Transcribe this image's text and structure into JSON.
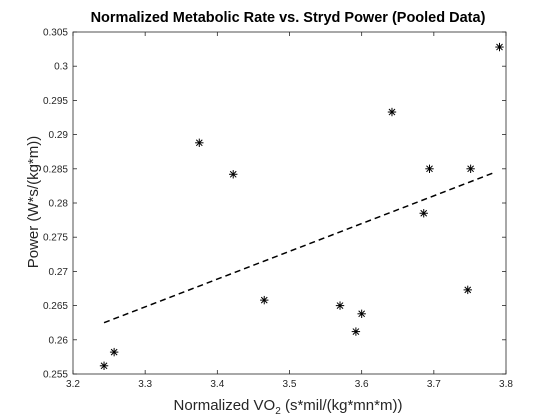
{
  "chart_data": {
    "type": "scatter",
    "title": "Normalized Metabolic Rate vs. Stryd Power (Pooled Data)",
    "xlabel": "Normalized VO",
    "xlabel_sub": "2",
    "xlabel_suffix": " (s*mil/(kg*mn*m))",
    "ylabel": "Power (W*s/(kg*m))",
    "xlim": [
      3.2,
      3.8
    ],
    "ylim": [
      0.255,
      0.305
    ],
    "xticks": [
      "3.2",
      "3.3",
      "3.4",
      "3.5",
      "3.6",
      "3.7",
      "3.8"
    ],
    "yticks": [
      "0.255",
      "0.26",
      "0.265",
      "0.27",
      "0.275",
      "0.28",
      "0.285",
      "0.29",
      "0.295",
      "0.3",
      "0.305"
    ],
    "grid": false,
    "marker": "asterisk",
    "series": [
      {
        "points": [
          [
            3.243,
            0.2562
          ],
          [
            3.257,
            0.2582
          ],
          [
            3.375,
            0.2888
          ],
          [
            3.422,
            0.2842
          ],
          [
            3.465,
            0.2658
          ],
          [
            3.57,
            0.265
          ],
          [
            3.592,
            0.2612
          ],
          [
            3.6,
            0.2638
          ],
          [
            3.642,
            0.2933
          ],
          [
            3.686,
            0.2785
          ],
          [
            3.694,
            0.285
          ],
          [
            3.747,
            0.2673
          ],
          [
            3.751,
            0.285
          ],
          [
            3.791,
            0.3028
          ]
        ]
      }
    ],
    "fit_line": {
      "style": "dashed",
      "points": [
        [
          3.243,
          0.2625
        ],
        [
          3.785,
          0.2845
        ]
      ]
    }
  }
}
